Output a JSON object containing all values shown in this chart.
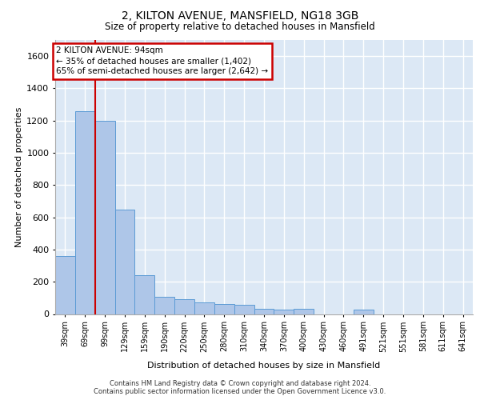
{
  "title1": "2, KILTON AVENUE, MANSFIELD, NG18 3GB",
  "title2": "Size of property relative to detached houses in Mansfield",
  "xlabel": "Distribution of detached houses by size in Mansfield",
  "ylabel": "Number of detached properties",
  "categories": [
    "39sqm",
    "69sqm",
    "99sqm",
    "129sqm",
    "159sqm",
    "190sqm",
    "220sqm",
    "250sqm",
    "280sqm",
    "310sqm",
    "340sqm",
    "370sqm",
    "400sqm",
    "430sqm",
    "460sqm",
    "491sqm",
    "521sqm",
    "551sqm",
    "581sqm",
    "611sqm",
    "641sqm"
  ],
  "values": [
    360,
    1260,
    1200,
    650,
    240,
    105,
    90,
    70,
    60,
    55,
    30,
    25,
    30,
    0,
    0,
    25,
    0,
    0,
    0,
    0,
    0
  ],
  "bar_color": "#aec6e8",
  "bar_edge_color": "#5b9bd5",
  "bg_color": "#dce8f5",
  "grid_color": "#ffffff",
  "red_line_x": 1.5,
  "annotation_title": "2 KILTON AVENUE: 94sqm",
  "annotation_line1": "← 35% of detached houses are smaller (1,402)",
  "annotation_line2": "65% of semi-detached houses are larger (2,642) →",
  "annotation_box_facecolor": "#ffffff",
  "annotation_border_color": "#cc0000",
  "footer1": "Contains HM Land Registry data © Crown copyright and database right 2024.",
  "footer2": "Contains public sector information licensed under the Open Government Licence v3.0.",
  "ylim": [
    0,
    1700
  ],
  "yticks": [
    0,
    200,
    400,
    600,
    800,
    1000,
    1200,
    1400,
    1600
  ]
}
